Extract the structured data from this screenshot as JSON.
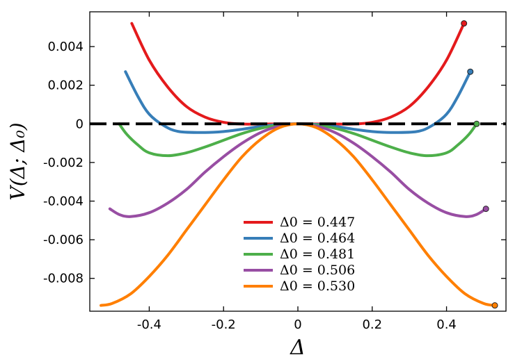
{
  "chart_data": {
    "type": "line",
    "xlabel": "Δ",
    "ylabel": "V(Δ; Δ₀)",
    "xlim": [
      -0.56,
      0.56
    ],
    "ylim": [
      -0.0097,
      0.0058
    ],
    "x_ticks": [
      -0.4,
      -0.2,
      0,
      0.2,
      0.4
    ],
    "x_tick_labels": [
      "-0.4",
      "-0.2",
      "0",
      "0.2",
      "0.4"
    ],
    "y_ticks": [
      0.004,
      0.002,
      0,
      -0.002,
      -0.004,
      -0.006,
      -0.008
    ],
    "y_tick_labels": [
      "0.004",
      "0.002",
      "0",
      "-0.002",
      "-0.004",
      "-0.006",
      "-0.008"
    ],
    "zero_line": {
      "y": 0,
      "style": "dashed",
      "color": "#000000"
    },
    "legend_position": "bottom-center",
    "series": [
      {
        "name": "Δ0 = 0.447",
        "delta0": 0.447,
        "color": "#e41a1c",
        "marker_at_positive_end": true,
        "points": [
          [
            -0.447,
            0.0052
          ],
          [
            -0.4,
            0.0033
          ],
          [
            -0.35,
            0.0019
          ],
          [
            -0.3,
            0.0009
          ],
          [
            -0.25,
            0.00035
          ],
          [
            -0.2,
            8e-05
          ],
          [
            -0.15,
            -1e-05
          ],
          [
            -0.1,
            -1e-05
          ],
          [
            0,
            0
          ],
          [
            0.1,
            -1e-05
          ],
          [
            0.15,
            -1e-05
          ],
          [
            0.2,
            8e-05
          ],
          [
            0.25,
            0.00035
          ],
          [
            0.3,
            0.0009
          ],
          [
            0.35,
            0.0019
          ],
          [
            0.4,
            0.0033
          ],
          [
            0.447,
            0.0052
          ]
        ]
      },
      {
        "name": "Δ0 = 0.464",
        "delta0": 0.464,
        "color": "#377eb8",
        "marker_at_positive_end": true,
        "points": [
          [
            -0.464,
            0.0027
          ],
          [
            -0.43,
            0.0014
          ],
          [
            -0.4,
            0.0005
          ],
          [
            -0.36,
            -0.0001
          ],
          [
            -0.32,
            -0.0004
          ],
          [
            -0.25,
            -0.00045
          ],
          [
            -0.2,
            -0.0004
          ],
          [
            -0.15,
            -0.00028
          ],
          [
            -0.1,
            -0.00013
          ],
          [
            -0.05,
            -3e-05
          ],
          [
            0,
            0
          ],
          [
            0.05,
            -3e-05
          ],
          [
            0.1,
            -0.00013
          ],
          [
            0.15,
            -0.00028
          ],
          [
            0.2,
            -0.0004
          ],
          [
            0.25,
            -0.00045
          ],
          [
            0.32,
            -0.0004
          ],
          [
            0.36,
            -0.0001
          ],
          [
            0.4,
            0.0005
          ],
          [
            0.43,
            0.0014
          ],
          [
            0.464,
            0.0027
          ]
        ]
      },
      {
        "name": "Δ0 = 0.481",
        "delta0": 0.481,
        "color": "#4daf4a",
        "marker_at_positive_end": true,
        "points": [
          [
            -0.481,
            0.0
          ],
          [
            -0.46,
            -0.00055
          ],
          [
            -0.43,
            -0.0011
          ],
          [
            -0.4,
            -0.0015
          ],
          [
            -0.35,
            -0.00165
          ],
          [
            -0.3,
            -0.0015
          ],
          [
            -0.25,
            -0.0012
          ],
          [
            -0.2,
            -0.00085
          ],
          [
            -0.15,
            -0.0005
          ],
          [
            -0.1,
            -0.00023
          ],
          [
            -0.05,
            -6e-05
          ],
          [
            0,
            0
          ],
          [
            0.05,
            -6e-05
          ],
          [
            0.1,
            -0.00023
          ],
          [
            0.15,
            -0.0005
          ],
          [
            0.2,
            -0.00085
          ],
          [
            0.25,
            -0.0012
          ],
          [
            0.3,
            -0.0015
          ],
          [
            0.35,
            -0.00165
          ],
          [
            0.4,
            -0.0015
          ],
          [
            0.43,
            -0.0011
          ],
          [
            0.46,
            -0.00055
          ],
          [
            0.481,
            0.0
          ]
        ]
      },
      {
        "name": "Δ0 = 0.506",
        "delta0": 0.506,
        "color": "#984ea3",
        "marker_at_positive_end": true,
        "points": [
          [
            -0.506,
            -0.0044
          ],
          [
            -0.48,
            -0.0047
          ],
          [
            -0.45,
            -0.0048
          ],
          [
            -0.4,
            -0.0046
          ],
          [
            -0.35,
            -0.0041
          ],
          [
            -0.3,
            -0.0034
          ],
          [
            -0.25,
            -0.0025
          ],
          [
            -0.2,
            -0.0017
          ],
          [
            -0.15,
            -0.001
          ],
          [
            -0.1,
            -0.00045
          ],
          [
            -0.05,
            -0.00012
          ],
          [
            0,
            0
          ],
          [
            0.05,
            -0.00012
          ],
          [
            0.1,
            -0.00045
          ],
          [
            0.15,
            -0.001
          ],
          [
            0.2,
            -0.0017
          ],
          [
            0.25,
            -0.0025
          ],
          [
            0.3,
            -0.0034
          ],
          [
            0.35,
            -0.0041
          ],
          [
            0.4,
            -0.0046
          ],
          [
            0.45,
            -0.0048
          ],
          [
            0.48,
            -0.0047
          ],
          [
            0.506,
            -0.0044
          ]
        ]
      },
      {
        "name": "Δ0 = 0.530",
        "delta0": 0.53,
        "color": "#ff7f00",
        "marker_at_positive_end": true,
        "points": [
          [
            -0.53,
            -0.0094
          ],
          [
            -0.5,
            -0.0093
          ],
          [
            -0.45,
            -0.0088
          ],
          [
            -0.4,
            -0.0079
          ],
          [
            -0.35,
            -0.0068
          ],
          [
            -0.3,
            -0.0055
          ],
          [
            -0.25,
            -0.0042
          ],
          [
            -0.2,
            -0.0029
          ],
          [
            -0.15,
            -0.0017
          ],
          [
            -0.1,
            -0.0008
          ],
          [
            -0.05,
            -0.0002
          ],
          [
            0,
            0
          ],
          [
            0.05,
            -0.0002
          ],
          [
            0.1,
            -0.0008
          ],
          [
            0.15,
            -0.0017
          ],
          [
            0.2,
            -0.0029
          ],
          [
            0.25,
            -0.0042
          ],
          [
            0.3,
            -0.0055
          ],
          [
            0.35,
            -0.0068
          ],
          [
            0.4,
            -0.0079
          ],
          [
            0.45,
            -0.0088
          ],
          [
            0.5,
            -0.0093
          ],
          [
            0.53,
            -0.0094
          ]
        ]
      }
    ]
  }
}
